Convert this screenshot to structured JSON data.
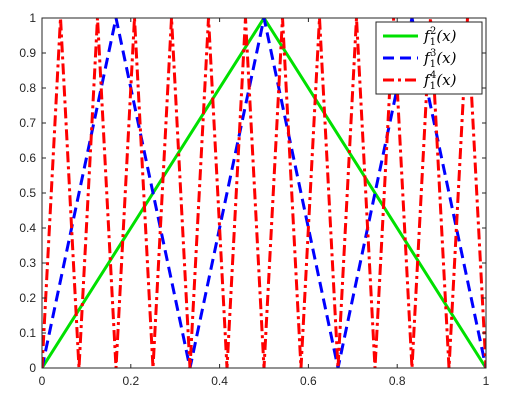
{
  "chart_data": {
    "type": "line",
    "title": "",
    "xlabel": "",
    "ylabel": "",
    "xlim": [
      0,
      1
    ],
    "ylim": [
      0,
      1
    ],
    "x_ticks": [
      0,
      0.2,
      0.4,
      0.6,
      0.8,
      1
    ],
    "y_ticks": [
      0,
      0.1,
      0.2,
      0.3,
      0.4,
      0.5,
      0.6,
      0.7,
      0.8,
      0.9,
      1
    ],
    "x_tick_labels": [
      "0",
      "0.2",
      "0.4",
      "0.6",
      "0.8",
      "1"
    ],
    "y_tick_labels": [
      "0",
      "0.1",
      "0.2",
      "0.3",
      "0.4",
      "0.5",
      "0.6",
      "0.7",
      "0.8",
      "0.9",
      "1"
    ],
    "grid": false,
    "legend_position": "top-right",
    "series": [
      {
        "name": "f_1^2(x)",
        "legend_base": "f",
        "legend_sub": "1",
        "legend_sup": "2",
        "legend_arg": "(x)",
        "color": "#00e000",
        "dash": "solid",
        "x": [
          0,
          0.5,
          1
        ],
        "y": [
          0,
          1,
          0
        ]
      },
      {
        "name": "f_1^3(x)",
        "legend_base": "f",
        "legend_sub": "1",
        "legend_sup": "3",
        "legend_arg": "(x)",
        "color": "#0000ff",
        "dash": "dashed",
        "x": [
          0,
          0.1667,
          0.3333,
          0.5,
          0.6667,
          0.8333,
          1
        ],
        "y": [
          0,
          1,
          0,
          1,
          0,
          1,
          0
        ]
      },
      {
        "name": "f_1^4(x)",
        "legend_base": "f",
        "legend_sub": "1",
        "legend_sup": "4",
        "legend_arg": "(x)",
        "color": "#ff0000",
        "dash": "dashdot",
        "x": [
          0,
          0.0417,
          0.0833,
          0.125,
          0.1667,
          0.2083,
          0.25,
          0.2917,
          0.3333,
          0.375,
          0.4167,
          0.4583,
          0.5,
          0.5417,
          0.5833,
          0.625,
          0.6667,
          0.7083,
          0.75,
          0.7917,
          0.8333,
          0.875,
          0.9167,
          0.9583,
          1
        ],
        "y": [
          0,
          1,
          0,
          1,
          0,
          1,
          0,
          1,
          0,
          1,
          0,
          1,
          0,
          1,
          0,
          1,
          0,
          1,
          0,
          1,
          0,
          1,
          0,
          1,
          0
        ]
      }
    ]
  }
}
